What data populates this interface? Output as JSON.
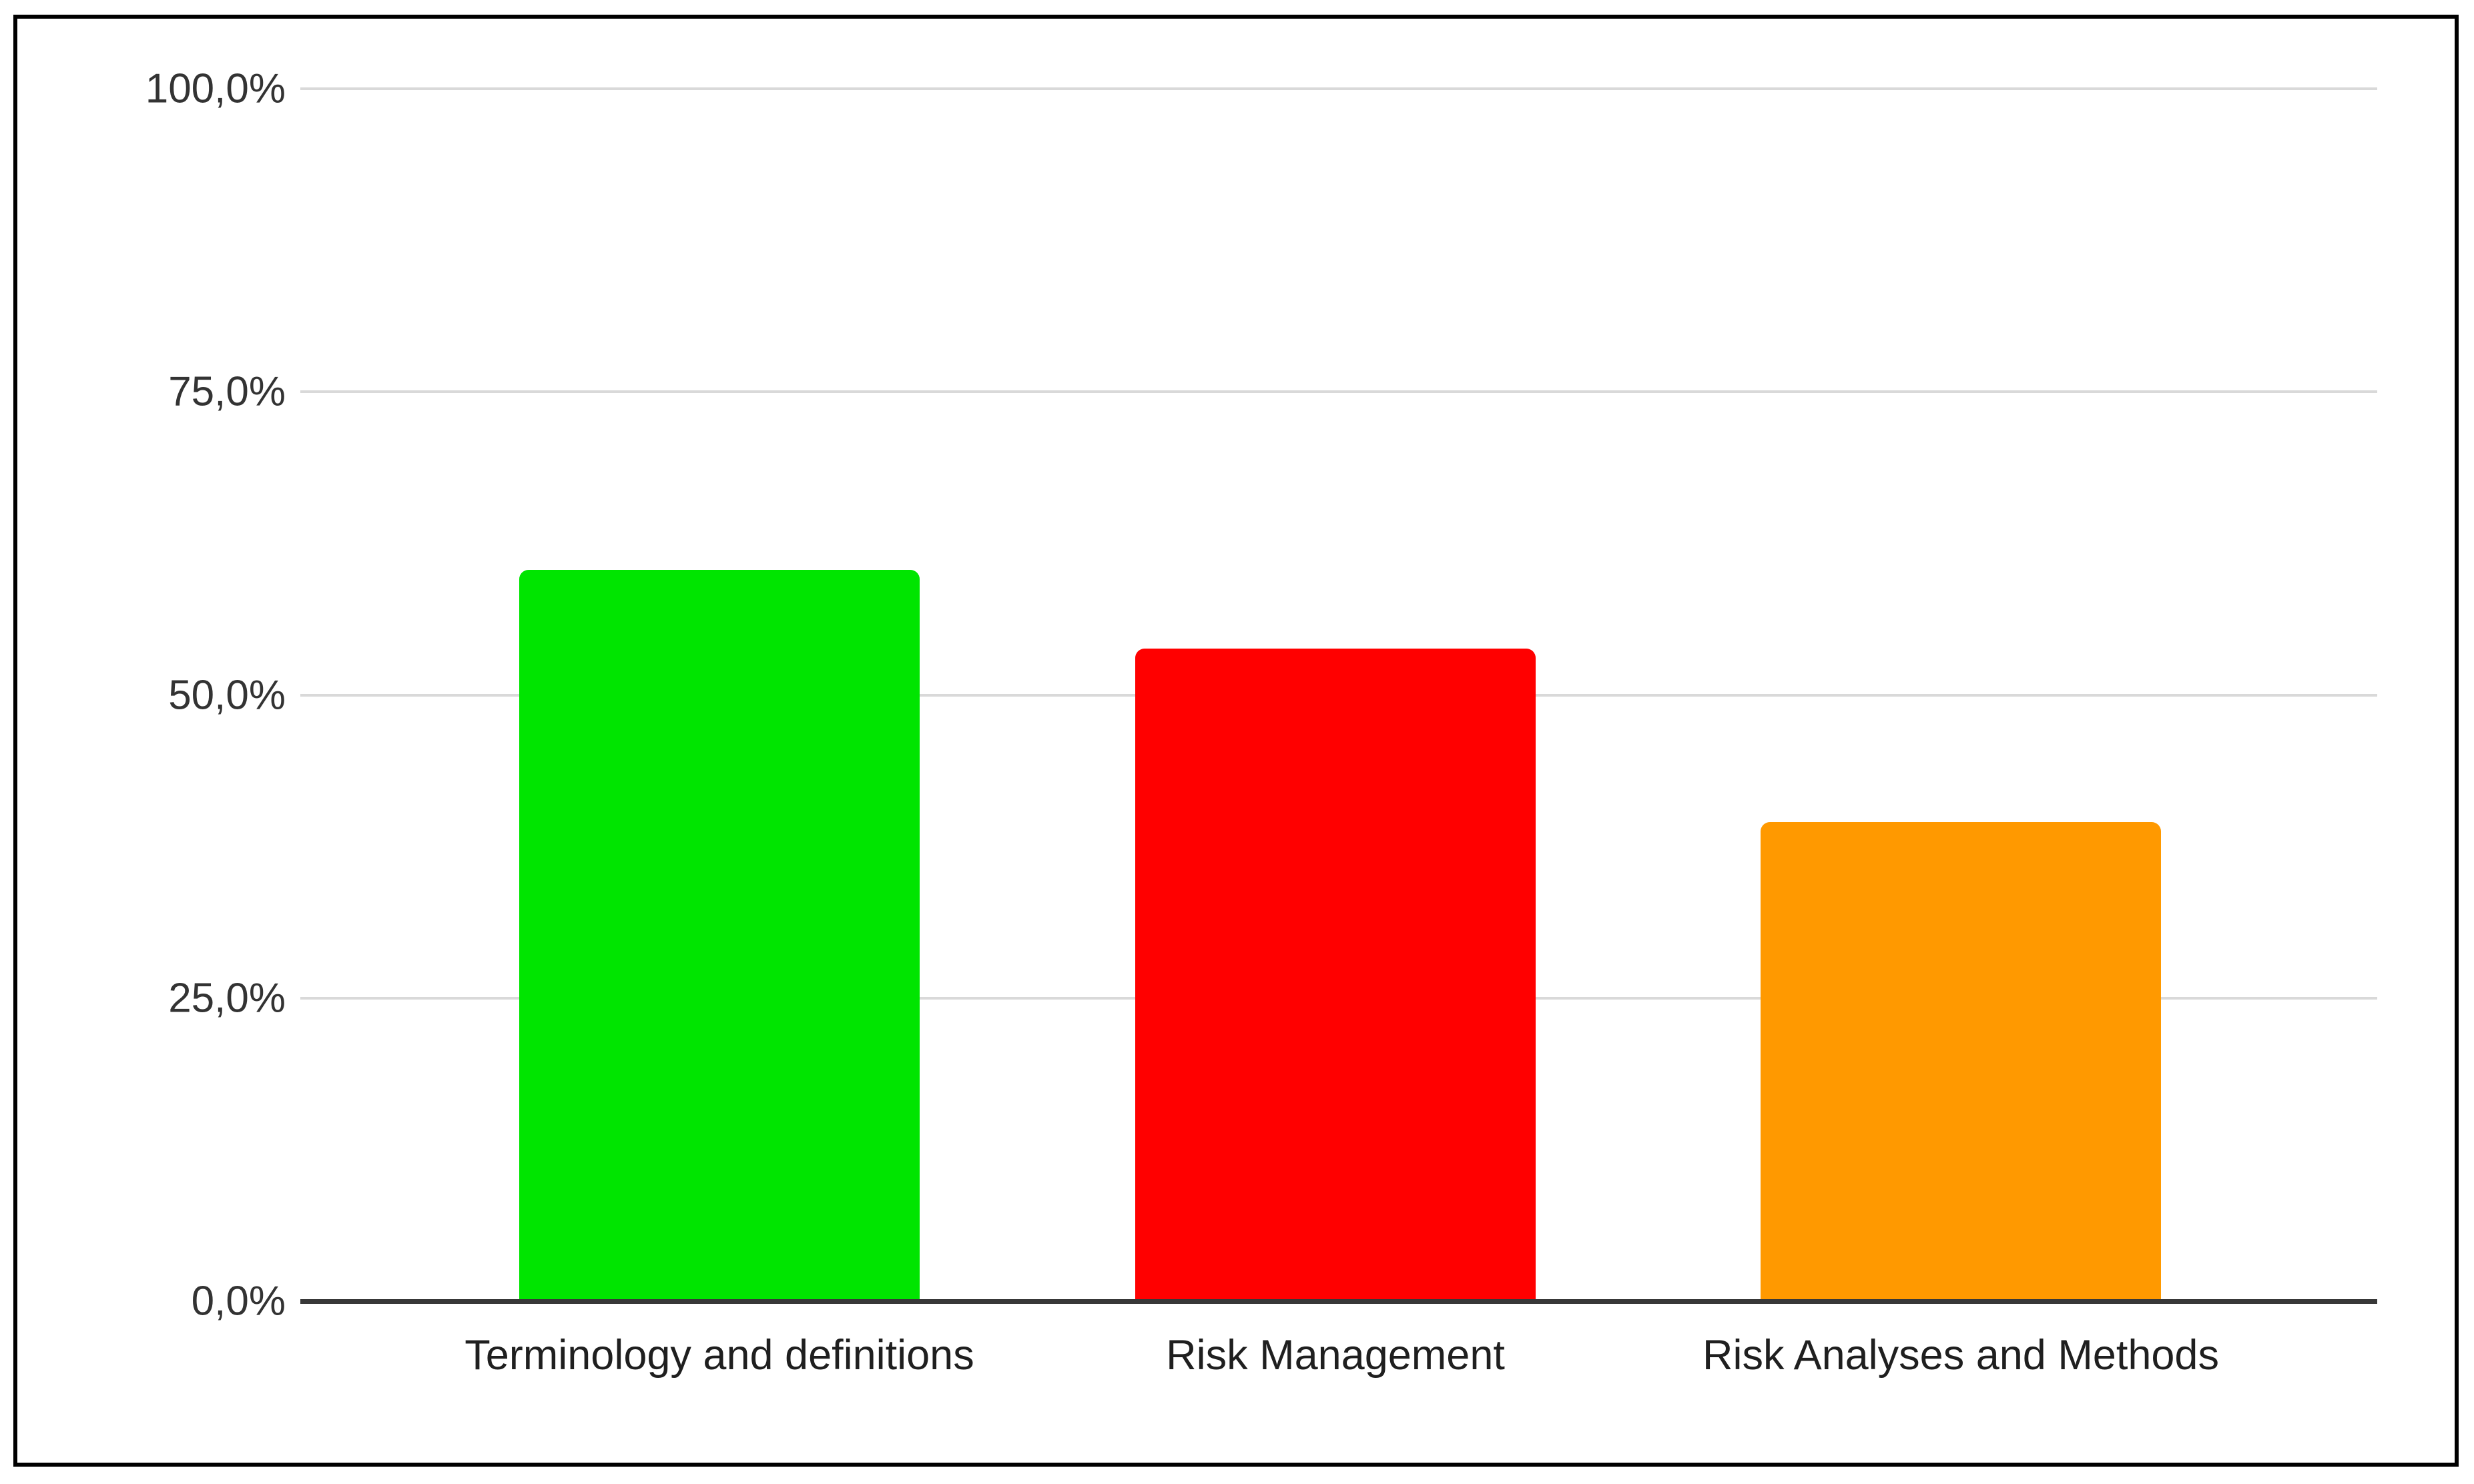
{
  "chart_data": {
    "type": "bar",
    "title": "",
    "xlabel": "",
    "ylabel": "",
    "categories": [
      "Terminology and definitions",
      "Risk Management",
      "Risk Analyses and Methods"
    ],
    "values": [
      60.3,
      53.8,
      39.5
    ],
    "bar_colors": [
      "#00e500",
      "#ff0000",
      "#ff9900"
    ],
    "ylim": [
      0,
      100
    ],
    "y_ticks": [
      0,
      25,
      50,
      75,
      100
    ],
    "y_tick_labels": [
      "0,0%",
      "25,0%",
      "50,0%",
      "75,0%",
      "100,0%"
    ],
    "grid": true,
    "legend": false,
    "value_format": "percent-comma-decimal"
  },
  "colors": {
    "background": "#ffffff",
    "frame_border": "#000000",
    "gridline": "#d9d9d9",
    "axis_line": "#383838",
    "tick_label": "#333333",
    "category_label": "#1f1f1f"
  }
}
